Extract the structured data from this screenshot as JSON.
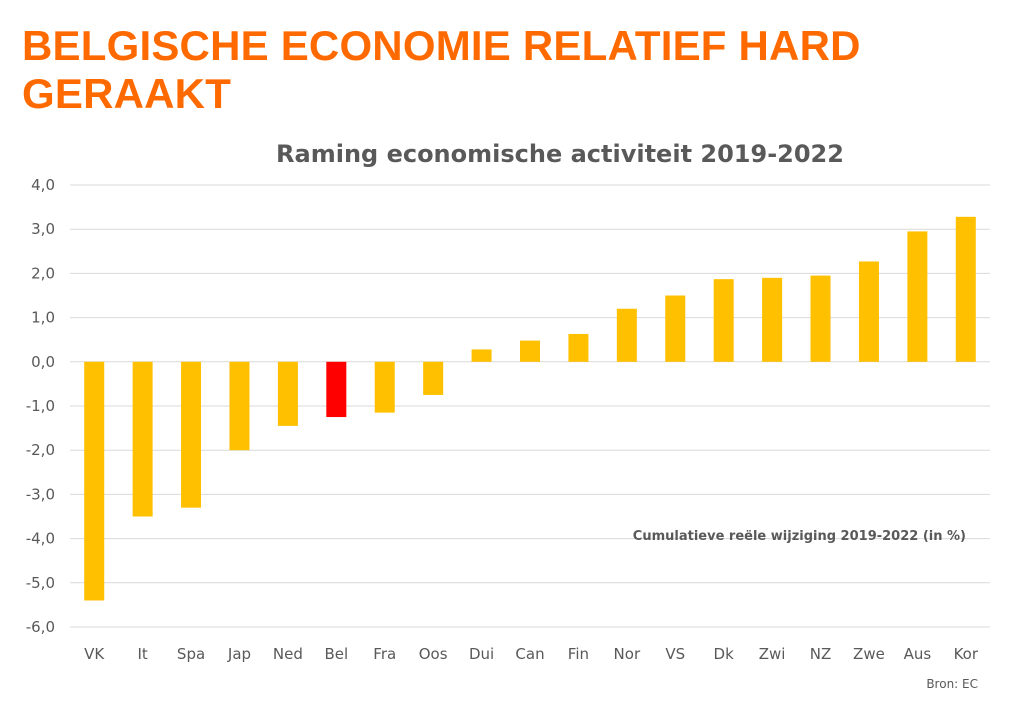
{
  "headline": "BELGISCHE ECONOMIE RELATIEF HARD GERAAKT",
  "colors": {
    "headline": "#FF6A00",
    "bar": "#FFC000",
    "highlight": "#FF0000",
    "grid": "#D9D9D9",
    "text": "#595959"
  },
  "chart_data": {
    "type": "bar",
    "title": "Raming economische activiteit 2019-2022",
    "categories": [
      "VK",
      "It",
      "Spa",
      "Jap",
      "Ned",
      "Bel",
      "Fra",
      "Oos",
      "Dui",
      "Can",
      "Fin",
      "Nor",
      "VS",
      "Dk",
      "Zwi",
      "NZ",
      "Zwe",
      "Aus",
      "Kor"
    ],
    "values": [
      -5.4,
      -3.5,
      -3.3,
      -2.0,
      -1.45,
      -1.25,
      -1.15,
      -0.75,
      0.28,
      0.48,
      0.63,
      1.2,
      1.5,
      1.87,
      1.9,
      1.95,
      2.27,
      2.95,
      3.28
    ],
    "highlight_category": "Bel",
    "ylim": [
      -6,
      4
    ],
    "yticks": [
      "-6,0",
      "-5,0",
      "-4,0",
      "-3,0",
      "-2,0",
      "-1,0",
      "0,0",
      "1,0",
      "2,0",
      "3,0",
      "4,0"
    ],
    "xlabel": "",
    "ylabel": "",
    "grid": true,
    "legend": "none",
    "annotation": "Cumulatieve reële wijziging 2019-2022 (in %)",
    "source": "Bron: EC"
  }
}
